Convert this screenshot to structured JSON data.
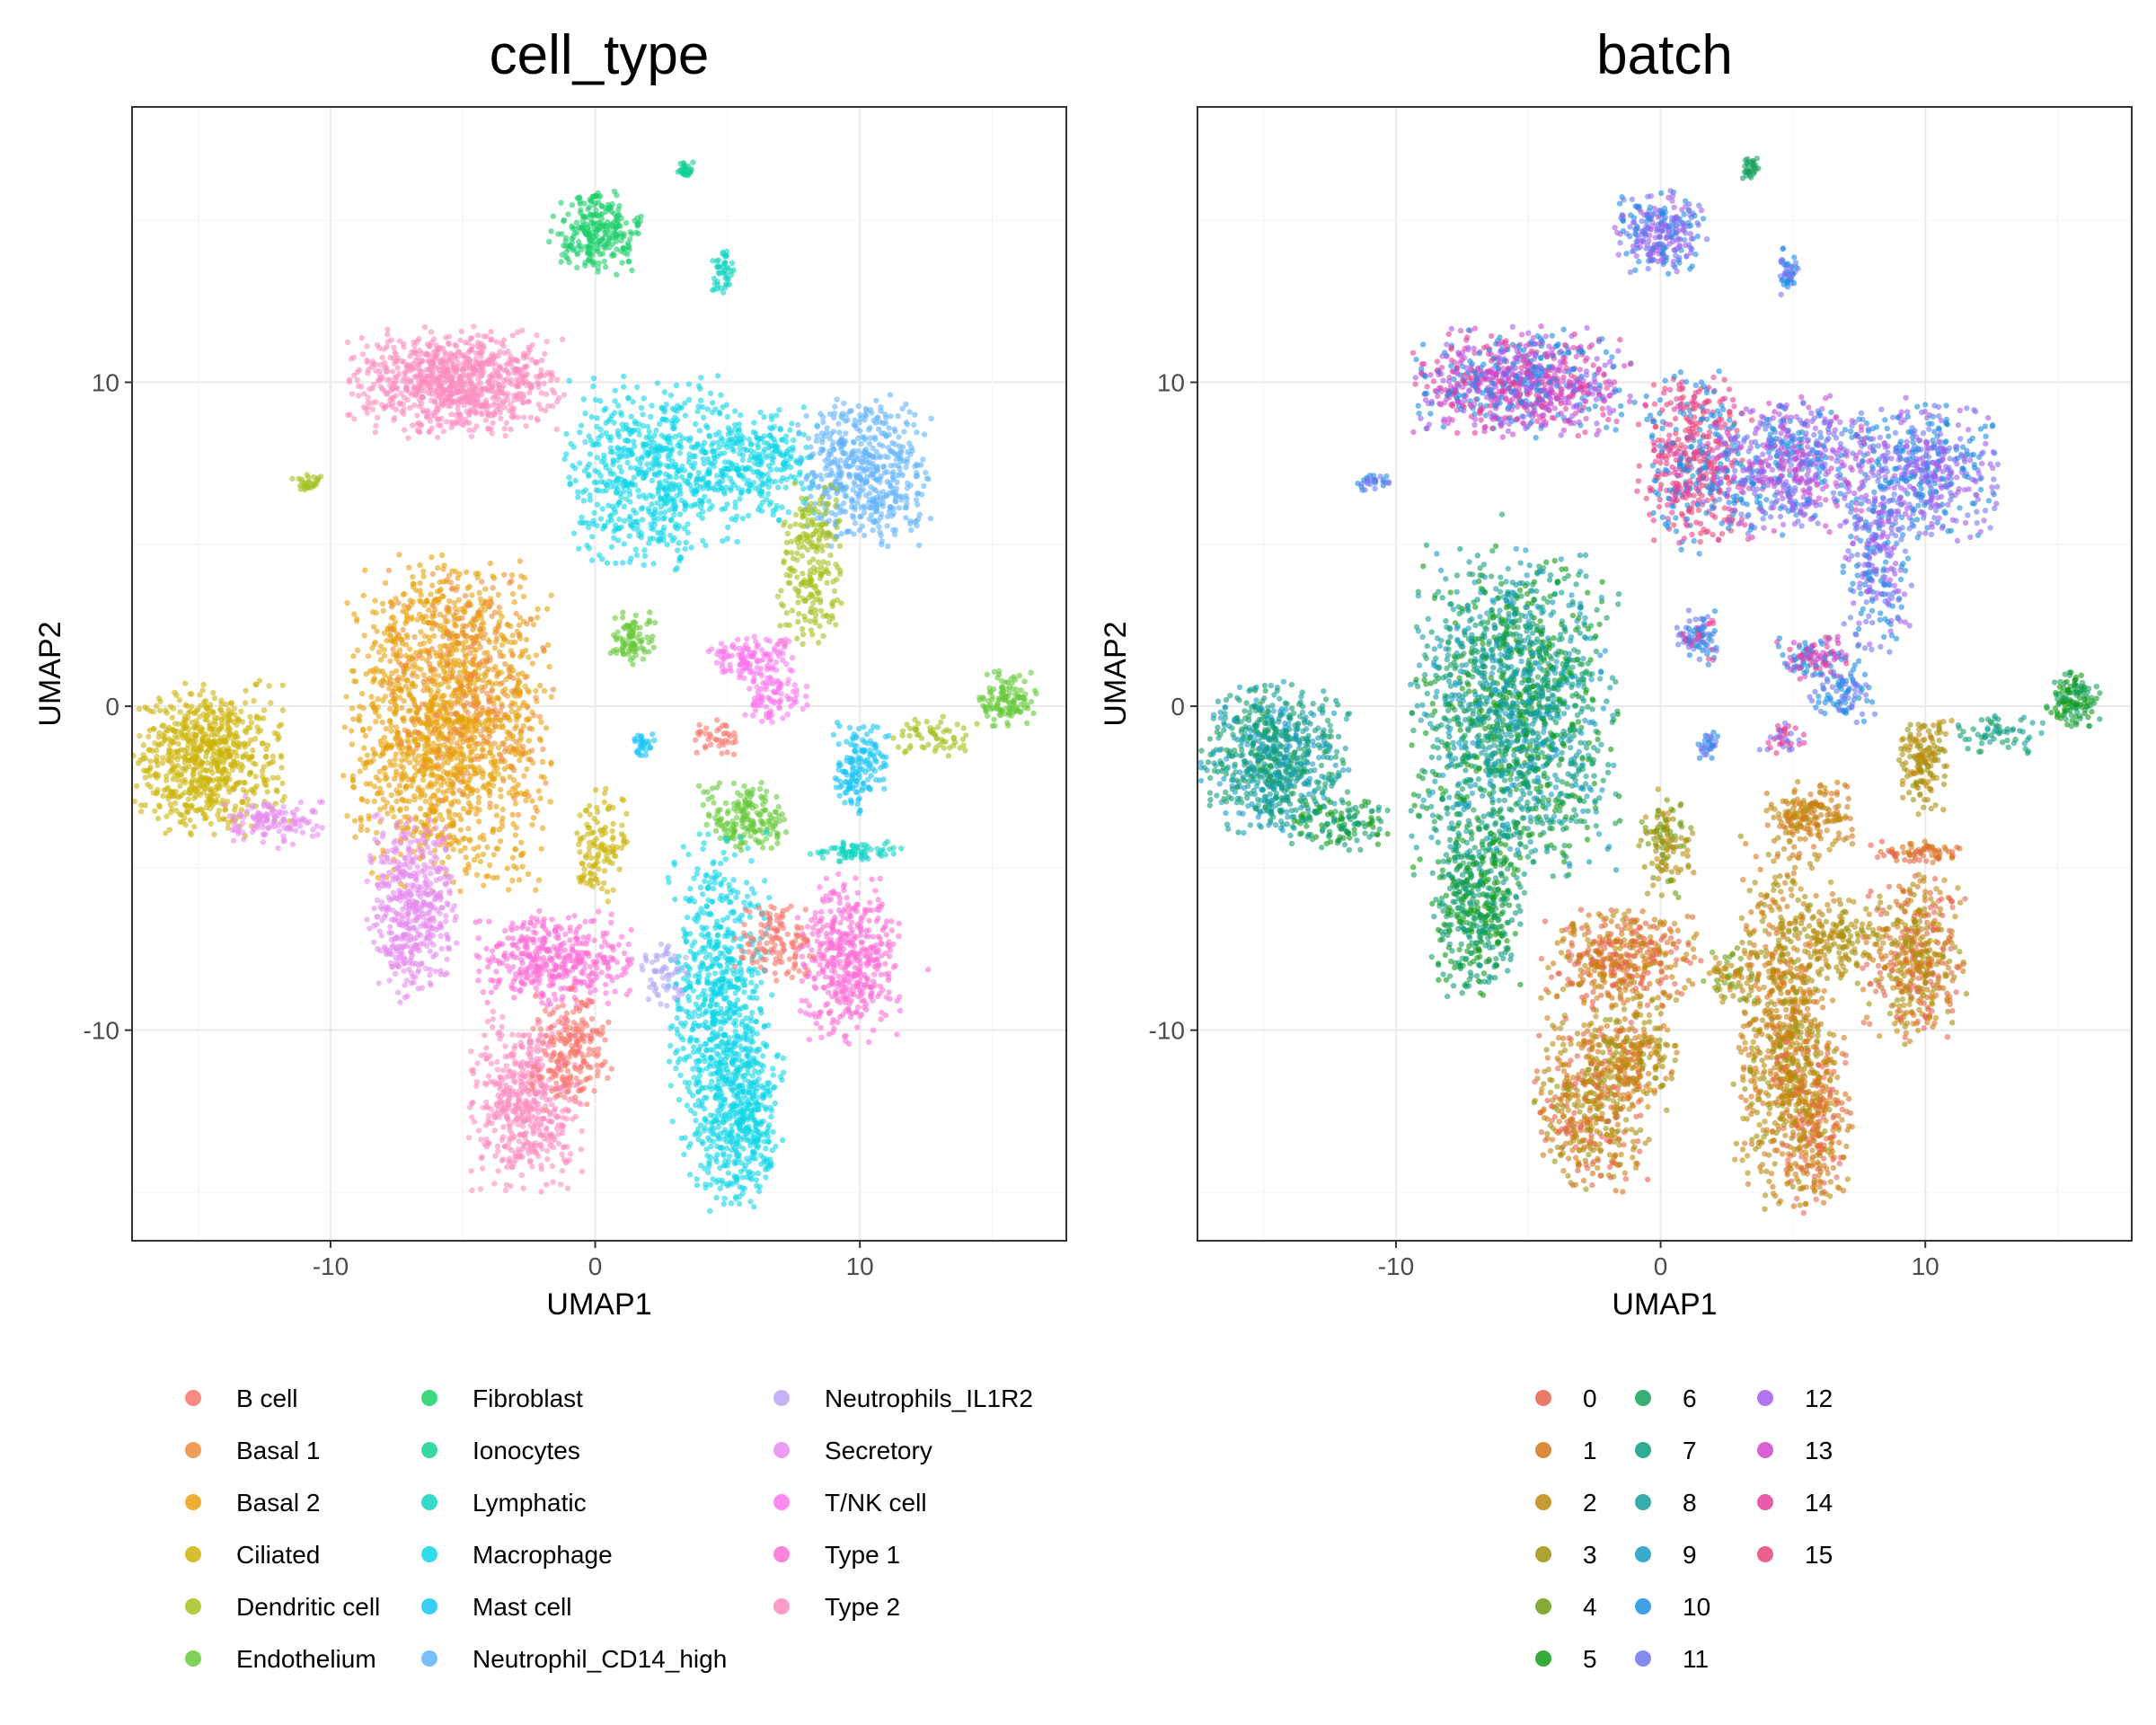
{
  "chart_data": [
    {
      "type": "scatter",
      "title": "cell_type",
      "xlabel": "UMAP1",
      "ylabel": "UMAP2",
      "xlim": [
        -17.5,
        17.8
      ],
      "ylim": [
        -16.5,
        18.5
      ],
      "xticks": [
        -10,
        0,
        10
      ],
      "yticks": [
        -10,
        0,
        10
      ],
      "grid": true,
      "legend_position": "bottom",
      "legend": [
        {
          "label": "B cell",
          "color": "#F8766D"
        },
        {
          "label": "Basal 1",
          "color": "#EE8B3C"
        },
        {
          "label": "Basal 2",
          "color": "#E7A20E"
        },
        {
          "label": "Ciliated",
          "color": "#CDB40C"
        },
        {
          "label": "Dendritic cell",
          "color": "#A3C21E"
        },
        {
          "label": "Endothelium",
          "color": "#68C93A"
        },
        {
          "label": "Fibroblast",
          "color": "#1DCF6A"
        },
        {
          "label": "Ionocytes",
          "color": "#14D197"
        },
        {
          "label": "Lymphatic",
          "color": "#11D3C2"
        },
        {
          "label": "Macrophage",
          "color": "#10D6E8"
        },
        {
          "label": "Mast cell",
          "color": "#1AC4F6"
        },
        {
          "label": "Neutrophil_CD14_high",
          "color": "#62B4FF"
        },
        {
          "label": "Neutrophils_IL1R2",
          "color": "#B8A6F3"
        },
        {
          "label": "Secretory",
          "color": "#E68CF0"
        },
        {
          "label": "T/NK cell",
          "color": "#FB77EC"
        },
        {
          "label": "Type 1",
          "color": "#FD6FD7"
        },
        {
          "label": "Type 2",
          "color": "#FB8CC0"
        }
      ],
      "clusters": [
        {
          "label": "Fibroblast",
          "x": 0,
          "y": 14.6,
          "sx": 0.8,
          "sy": 0.6,
          "n": 260
        },
        {
          "label": "Ionocytes",
          "x": 3.4,
          "y": 16.6,
          "sx": 0.15,
          "sy": 0.15,
          "n": 30
        },
        {
          "label": "Lymphatic",
          "x": 4.8,
          "y": 13.4,
          "sx": 0.2,
          "sy": 0.35,
          "n": 45
        },
        {
          "label": "Type 2",
          "x": -5.3,
          "y": 10,
          "sx": 1.9,
          "sy": 0.8,
          "n": 850
        },
        {
          "label": "Dendritic cell",
          "x": -10.8,
          "y": 6.9,
          "sx": 0.3,
          "sy": 0.15,
          "n": 30
        },
        {
          "label": "Macrophage",
          "x": 2.2,
          "y": 7.2,
          "sx": 1.6,
          "sy": 1.4,
          "n": 650
        },
        {
          "label": "Macrophage",
          "x": 6,
          "y": 7.5,
          "sx": 1.1,
          "sy": 0.8,
          "n": 280
        },
        {
          "label": "Neutrophil_CD14_high",
          "x": 10.2,
          "y": 7.2,
          "sx": 1.2,
          "sy": 1.1,
          "n": 500
        },
        {
          "label": "Dendritic cell",
          "x": 8.2,
          "y": 4.3,
          "sx": 0.6,
          "sy": 1.2,
          "n": 220
        },
        {
          "label": "Basal 2",
          "x": -5.6,
          "y": -0.5,
          "sx": 1.8,
          "sy": 2.4,
          "n": 1500
        },
        {
          "label": "Basal 1",
          "x": -4.8,
          "y": 0.5,
          "sx": 1.5,
          "sy": 1.8,
          "n": 250
        },
        {
          "label": "Ciliated",
          "x": -14.6,
          "y": -1.6,
          "sx": 1.3,
          "sy": 1.1,
          "n": 700
        },
        {
          "label": "Secretory",
          "x": -12.2,
          "y": -3.6,
          "sx": 0.9,
          "sy": 0.4,
          "n": 120
        },
        {
          "label": "Secretory",
          "x": -6.9,
          "y": -6.2,
          "sx": 0.8,
          "sy": 1.3,
          "n": 450
        },
        {
          "label": "Endothelium",
          "x": 1.4,
          "y": 2.1,
          "sx": 0.4,
          "sy": 0.4,
          "n": 90
        },
        {
          "label": "T/NK cell",
          "x": 5.9,
          "y": 1.5,
          "sx": 0.8,
          "sy": 0.3,
          "n": 120
        },
        {
          "label": "T/NK cell",
          "x": 6.8,
          "y": 0.3,
          "sx": 0.6,
          "sy": 0.4,
          "n": 90
        },
        {
          "label": "B cell",
          "x": 4.6,
          "y": -0.9,
          "sx": 0.4,
          "sy": 0.3,
          "n": 40
        },
        {
          "label": "Mast cell",
          "x": 1.8,
          "y": -1.2,
          "sx": 0.2,
          "sy": 0.2,
          "n": 30
        },
        {
          "label": "Mast cell",
          "x": 10,
          "y": -1.8,
          "sx": 0.5,
          "sy": 0.7,
          "n": 150
        },
        {
          "label": "Endothelium",
          "x": 15.6,
          "y": 0.2,
          "sx": 0.5,
          "sy": 0.4,
          "n": 120
        },
        {
          "label": "Dendritic cell",
          "x": 12.8,
          "y": -0.9,
          "sx": 0.8,
          "sy": 0.3,
          "n": 60
        },
        {
          "label": "Endothelium",
          "x": 5.7,
          "y": -3.4,
          "sx": 0.8,
          "sy": 0.5,
          "n": 180
        },
        {
          "label": "Lymphatic",
          "x": 9.8,
          "y": -4.5,
          "sx": 0.9,
          "sy": 0.15,
          "n": 70
        },
        {
          "label": "Ciliated",
          "x": 0.2,
          "y": -4.3,
          "sx": 0.5,
          "sy": 0.8,
          "n": 120
        },
        {
          "label": "Type 1",
          "x": -1.5,
          "y": -7.8,
          "sx": 1.4,
          "sy": 0.7,
          "n": 400
        },
        {
          "label": "Type 2",
          "x": -2.6,
          "y": -12.2,
          "sx": 1,
          "sy": 1.3,
          "n": 500
        },
        {
          "label": "B cell",
          "x": -0.9,
          "y": -10.6,
          "sx": 0.7,
          "sy": 0.9,
          "n": 200
        },
        {
          "label": "Macrophage",
          "x": 4.7,
          "y": -9.6,
          "sx": 0.9,
          "sy": 2.6,
          "n": 800
        },
        {
          "label": "Macrophage",
          "x": 5.7,
          "y": -12.8,
          "sx": 0.7,
          "sy": 1.3,
          "n": 300
        },
        {
          "label": "Type 1",
          "x": 9.6,
          "y": -7.8,
          "sx": 0.9,
          "sy": 1.2,
          "n": 450
        },
        {
          "label": "B cell",
          "x": 6.8,
          "y": -7.3,
          "sx": 0.7,
          "sy": 0.6,
          "n": 120
        },
        {
          "label": "Neutrophils_IL1R2",
          "x": 2.7,
          "y": -8.3,
          "sx": 0.5,
          "sy": 0.5,
          "n": 60
        }
      ]
    },
    {
      "type": "scatter",
      "title": "batch",
      "xlabel": "UMAP1",
      "ylabel": "UMAP2",
      "xlim": [
        -17.5,
        17.8
      ],
      "ylim": [
        -16.5,
        18.5
      ],
      "xticks": [
        -10,
        0,
        10
      ],
      "yticks": [
        -10,
        0,
        10
      ],
      "grid": true,
      "legend_position": "bottom",
      "legend": [
        {
          "label": "0",
          "color": "#E7634F"
        },
        {
          "label": "1",
          "color": "#D57717"
        },
        {
          "label": "2",
          "color": "#BE8A0C"
        },
        {
          "label": "3",
          "color": "#A0930E"
        },
        {
          "label": "4",
          "color": "#6E9E12"
        },
        {
          "label": "5",
          "color": "#139B17"
        },
        {
          "label": "6",
          "color": "#16A05C"
        },
        {
          "label": "7",
          "color": "#0C9D80"
        },
        {
          "label": "8",
          "color": "#159D9C"
        },
        {
          "label": "9",
          "color": "#169CC4"
        },
        {
          "label": "10",
          "color": "#1D8EE3"
        },
        {
          "label": "11",
          "color": "#6F78F1"
        },
        {
          "label": "12",
          "color": "#A65CEC"
        },
        {
          "label": "13",
          "color": "#CF47CB"
        },
        {
          "label": "14",
          "color": "#E4409C"
        },
        {
          "label": "15",
          "color": "#E94576"
        }
      ],
      "clusters": [
        {
          "labels": [
            "12",
            "10",
            "11"
          ],
          "x": 0,
          "y": 14.6,
          "sx": 0.8,
          "sy": 0.6,
          "n": 260
        },
        {
          "labels": [
            "6"
          ],
          "x": 3.4,
          "y": 16.6,
          "sx": 0.15,
          "sy": 0.15,
          "n": 30
        },
        {
          "labels": [
            "10",
            "11"
          ],
          "x": 4.8,
          "y": 13.4,
          "sx": 0.2,
          "sy": 0.35,
          "n": 45
        },
        {
          "labels": [
            "12",
            "14",
            "10",
            "13"
          ],
          "x": -5.3,
          "y": 10,
          "sx": 1.9,
          "sy": 0.8,
          "n": 850
        },
        {
          "labels": [
            "11",
            "10"
          ],
          "x": -10.8,
          "y": 6.9,
          "sx": 0.3,
          "sy": 0.15,
          "n": 30
        },
        {
          "labels": [
            "14",
            "15",
            "10"
          ],
          "x": 1.2,
          "y": 7.5,
          "sx": 1,
          "sy": 1.3,
          "n": 500
        },
        {
          "labels": [
            "12",
            "11",
            "10",
            "13"
          ],
          "x": 4.8,
          "y": 7.4,
          "sx": 1.5,
          "sy": 1,
          "n": 600
        },
        {
          "labels": [
            "11",
            "12",
            "10"
          ],
          "x": 10,
          "y": 7.2,
          "sx": 1.3,
          "sy": 1.1,
          "n": 500
        },
        {
          "labels": [
            "12",
            "11",
            "10"
          ],
          "x": 8.2,
          "y": 4.3,
          "sx": 0.6,
          "sy": 1.2,
          "n": 220
        },
        {
          "labels": [
            "6",
            "5",
            "7",
            "8",
            "9"
          ],
          "x": -5.5,
          "y": -0.2,
          "sx": 1.8,
          "sy": 2.4,
          "n": 1700
        },
        {
          "labels": [
            "7",
            "8",
            "6",
            "9"
          ],
          "x": -14.6,
          "y": -1.6,
          "sx": 1.3,
          "sy": 1.1,
          "n": 700
        },
        {
          "labels": [
            "6",
            "7",
            "5"
          ],
          "x": -12.2,
          "y": -3.6,
          "sx": 0.9,
          "sy": 0.4,
          "n": 120
        },
        {
          "labels": [
            "7",
            "6",
            "5"
          ],
          "x": -6.9,
          "y": -6.2,
          "sx": 0.8,
          "sy": 1.3,
          "n": 450
        },
        {
          "labels": [
            "10",
            "11",
            "14"
          ],
          "x": 1.4,
          "y": 2.1,
          "sx": 0.4,
          "sy": 0.4,
          "n": 90
        },
        {
          "labels": [
            "14",
            "13",
            "10"
          ],
          "x": 5.9,
          "y": 1.5,
          "sx": 0.8,
          "sy": 0.3,
          "n": 120
        },
        {
          "labels": [
            "10",
            "11"
          ],
          "x": 6.8,
          "y": 0.3,
          "sx": 0.6,
          "sy": 0.4,
          "n": 90
        },
        {
          "labels": [
            "11",
            "14"
          ],
          "x": 4.6,
          "y": -0.9,
          "sx": 0.4,
          "sy": 0.3,
          "n": 40
        },
        {
          "labels": [
            "11",
            "10"
          ],
          "x": 1.8,
          "y": -1.2,
          "sx": 0.2,
          "sy": 0.2,
          "n": 30
        },
        {
          "labels": [
            "2",
            "3"
          ],
          "x": 10,
          "y": -1.8,
          "sx": 0.5,
          "sy": 0.7,
          "n": 150
        },
        {
          "labels": [
            "6",
            "5"
          ],
          "x": 15.6,
          "y": 0.2,
          "sx": 0.5,
          "sy": 0.4,
          "n": 120
        },
        {
          "labels": [
            "6",
            "7",
            "8"
          ],
          "x": 12.8,
          "y": -0.9,
          "sx": 0.8,
          "sy": 0.3,
          "n": 60
        },
        {
          "labels": [
            "1",
            "2"
          ],
          "x": 5.7,
          "y": -3.4,
          "sx": 0.8,
          "sy": 0.5,
          "n": 180
        },
        {
          "labels": [
            "1",
            "0"
          ],
          "x": 9.8,
          "y": -4.5,
          "sx": 0.9,
          "sy": 0.15,
          "n": 70
        },
        {
          "labels": [
            "2",
            "3",
            "4"
          ],
          "x": 0.2,
          "y": -4.3,
          "sx": 0.5,
          "sy": 0.8,
          "n": 120
        },
        {
          "labels": [
            "1",
            "2",
            "0"
          ],
          "x": -1.5,
          "y": -7.8,
          "sx": 1.4,
          "sy": 0.7,
          "n": 400
        },
        {
          "labels": [
            "1",
            "0",
            "2",
            "3"
          ],
          "x": -2.6,
          "y": -12.2,
          "sx": 1,
          "sy": 1.3,
          "n": 500
        },
        {
          "labels": [
            "2",
            "3",
            "1"
          ],
          "x": -0.9,
          "y": -10.6,
          "sx": 0.7,
          "sy": 0.9,
          "n": 200
        },
        {
          "labels": [
            "2",
            "1",
            "3"
          ],
          "x": 4.7,
          "y": -9.6,
          "sx": 0.9,
          "sy": 2.6,
          "n": 800
        },
        {
          "labels": [
            "1",
            "0",
            "2"
          ],
          "x": 5.7,
          "y": -12.8,
          "sx": 0.7,
          "sy": 1.3,
          "n": 300
        },
        {
          "labels": [
            "3",
            "2",
            "1",
            "0"
          ],
          "x": 9.6,
          "y": -7.8,
          "sx": 0.9,
          "sy": 1.2,
          "n": 450
        },
        {
          "labels": [
            "2",
            "3"
          ],
          "x": 6.8,
          "y": -7.3,
          "sx": 0.7,
          "sy": 0.6,
          "n": 120
        },
        {
          "labels": [
            "2",
            "4"
          ],
          "x": 2.7,
          "y": -8.3,
          "sx": 0.5,
          "sy": 0.5,
          "n": 60
        }
      ]
    }
  ]
}
